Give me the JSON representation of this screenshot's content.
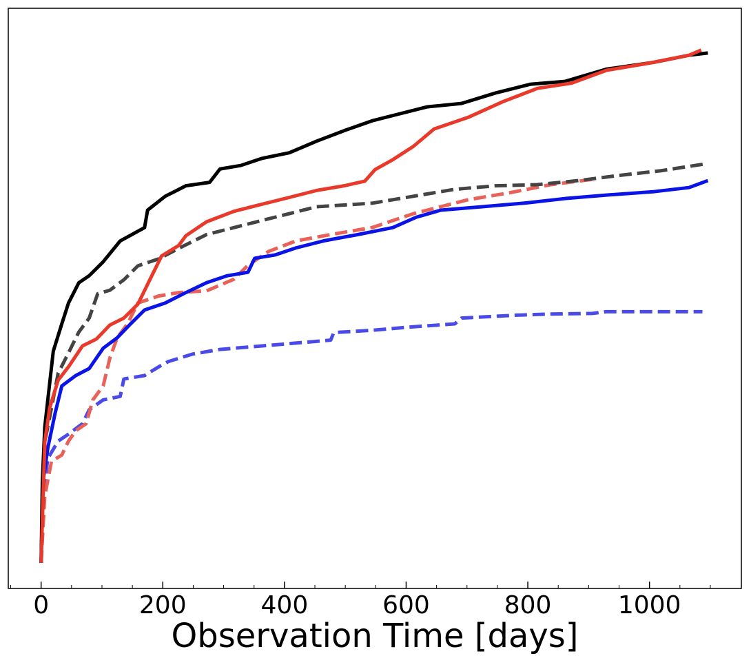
{
  "chart_data": {
    "type": "line",
    "x_label": "Observation Time [days]",
    "xlim": [
      -54,
      1151
    ],
    "ylim": [
      0,
      100
    ],
    "xticks": [
      0,
      200,
      400,
      600,
      800,
      1000
    ],
    "xminorticks": [
      -50,
      50,
      100,
      150,
      250,
      300,
      350,
      450,
      500,
      550,
      650,
      700,
      750,
      850,
      900,
      950,
      1050,
      1100
    ],
    "series": [
      {
        "color": "#4a4ae8",
        "dashed": true,
        "x": [
          0,
          6,
          11,
          28,
          45,
          68,
          79,
          102,
          130,
          136,
          170,
          198,
          209,
          249,
          294,
          340,
          408,
          476,
          481,
          544,
          612,
          680,
          691,
          781,
          838,
          906,
          929,
          1087
        ],
        "values": [
          4.4,
          18.3,
          22.4,
          25.4,
          26.6,
          28.4,
          30.8,
          32.5,
          33.1,
          36.1,
          36.7,
          38.5,
          39.1,
          40.4,
          41.2,
          41.6,
          42.2,
          42.8,
          44.1,
          44.5,
          45.1,
          45.6,
          46.6,
          47.1,
          47.3,
          47.4,
          47.7,
          47.7
        ]
      },
      {
        "color": "#e8625a",
        "dashed": true,
        "x": [
          0,
          6,
          17,
          34,
          45,
          57,
          74,
          85,
          102,
          113,
          125,
          142,
          159,
          193,
          226,
          272,
          317,
          340,
          374,
          419,
          476,
          544,
          612,
          657,
          702,
          770,
          838,
          906
        ],
        "values": [
          4.4,
          15.9,
          21.9,
          23.0,
          25.4,
          27.2,
          28.4,
          32.5,
          34.9,
          39.7,
          43.2,
          45.6,
          49.2,
          50.4,
          51.0,
          51.3,
          53.3,
          55.7,
          58.1,
          59.9,
          61.0,
          62.2,
          64.6,
          65.8,
          67.0,
          68.2,
          69.6,
          70.5
        ]
      },
      {
        "color": "#444444",
        "dashed": true,
        "x": [
          0,
          6,
          17,
          28,
          45,
          62,
          79,
          93,
          113,
          136,
          159,
          193,
          226,
          272,
          317,
          362,
          408,
          453,
          544,
          612,
          680,
          747,
          815,
          883,
          951,
          1019,
          1093
        ],
        "values": [
          4.4,
          25.2,
          31.1,
          37.1,
          40.6,
          44.2,
          46.6,
          50.8,
          51.4,
          53.2,
          55.6,
          56.8,
          58.6,
          61.0,
          62.2,
          63.4,
          64.6,
          65.8,
          66.4,
          67.6,
          68.8,
          69.4,
          69.6,
          70.3,
          71.2,
          72.0,
          73.2
        ]
      },
      {
        "color": "#0a14e6",
        "dashed": false,
        "x": [
          0,
          3,
          11,
          23,
          34,
          57,
          79,
          102,
          125,
          147,
          170,
          204,
          238,
          272,
          306,
          340,
          351,
          385,
          419,
          464,
          521,
          578,
          617,
          657,
          725,
          793,
          861,
          929,
          1008,
          1065,
          1096
        ],
        "values": [
          4.4,
          18.3,
          24.2,
          30.2,
          34.9,
          36.7,
          37.9,
          41.4,
          43.2,
          45.6,
          48.0,
          49.2,
          51.0,
          52.7,
          53.9,
          54.5,
          56.9,
          57.5,
          58.7,
          59.9,
          61.0,
          62.2,
          64.0,
          65.2,
          65.8,
          66.4,
          67.2,
          67.8,
          68.4,
          69.1,
          70.3
        ]
      },
      {
        "color": "#000000",
        "dashed": false,
        "x": [
          0,
          2,
          6,
          11,
          20,
          34,
          45,
          62,
          79,
          102,
          130,
          170,
          175,
          204,
          238,
          277,
          294,
          328,
          362,
          408,
          453,
          498,
          544,
          589,
          634,
          691,
          747,
          804,
          861,
          929,
          1008,
          1065,
          1096
        ],
        "values": [
          4.4,
          18.3,
          27.8,
          32.5,
          40.9,
          45.6,
          49.2,
          52.7,
          53.9,
          56.3,
          59.9,
          62.2,
          65.2,
          67.6,
          69.4,
          70.0,
          72.3,
          72.9,
          74.1,
          75.1,
          77.1,
          78.9,
          80.6,
          81.8,
          83.0,
          83.6,
          85.4,
          86.9,
          87.4,
          89.5,
          90.7,
          91.9,
          92.3
        ]
      },
      {
        "color": "#e8392a",
        "dashed": false,
        "x": [
          0,
          6,
          14,
          28,
          45,
          68,
          91,
          113,
          136,
          159,
          181,
          198,
          226,
          238,
          272,
          317,
          362,
          408,
          453,
          498,
          532,
          549,
          578,
          612,
          646,
          702,
          759,
          816,
          872,
          929,
          997,
          1065,
          1085
        ],
        "values": [
          4.4,
          25.2,
          31.1,
          35.9,
          38.2,
          41.8,
          43.0,
          45.4,
          46.6,
          49.0,
          53.7,
          57.3,
          59.1,
          60.8,
          63.2,
          65.0,
          66.2,
          67.4,
          68.6,
          69.4,
          70.2,
          72.2,
          73.9,
          76.2,
          79.2,
          81.2,
          83.9,
          86.2,
          87.1,
          89.3,
          90.5,
          91.9,
          92.8
        ]
      }
    ]
  }
}
